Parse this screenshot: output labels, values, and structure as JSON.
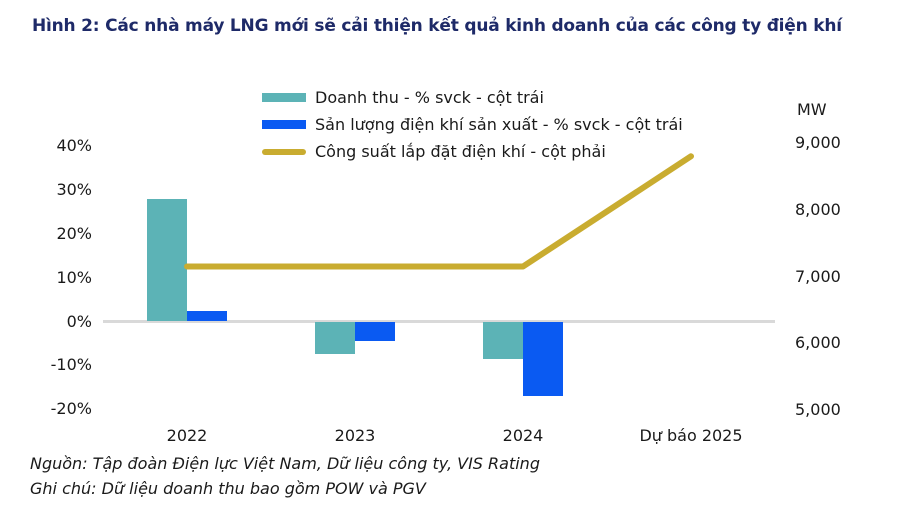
{
  "chart_data": {
    "type": "combo_bar_line",
    "title": "Hình 2: Các nhà máy LNG mới sẽ cải thiện kết quả kinh doanh của các công ty điện khí",
    "categories": [
      "2022",
      "2023",
      "2024",
      "Dự báo 2025"
    ],
    "series": [
      {
        "name": "Doanh thu - % svck - cột trái",
        "type": "bar",
        "axis": "left",
        "color": "#5CB3B6",
        "values": [
          28,
          -7.5,
          -8.5,
          null
        ]
      },
      {
        "name": "Sản lượng điện khí sản xuất - % svck - cột trái",
        "type": "bar",
        "axis": "left",
        "color": "#0A5AF2",
        "values": [
          2.5,
          -4.5,
          -17,
          null
        ]
      },
      {
        "name": "Công suất lắp đặt điện khí - cột phải",
        "type": "line",
        "axis": "right",
        "color": "#C9AC30",
        "values": [
          7150,
          7150,
          7150,
          8800
        ]
      }
    ],
    "left_axis": {
      "unit": "%",
      "range": [
        -20,
        40
      ],
      "ticks": [
        {
          "label": "40%",
          "value": 40
        },
        {
          "label": "30%",
          "value": 30
        },
        {
          "label": "20%",
          "value": 20
        },
        {
          "label": "10%",
          "value": 10
        },
        {
          "label": "0%",
          "value": 0
        },
        {
          "label": "-10%",
          "value": -10
        },
        {
          "label": "-20%",
          "value": -20
        }
      ]
    },
    "right_axis": {
      "label": "MW",
      "range": [
        5000,
        9000
      ],
      "ticks": [
        {
          "label": "9,000",
          "value": 9000
        },
        {
          "label": "8,000",
          "value": 8000
        },
        {
          "label": "7,000",
          "value": 7000
        },
        {
          "label": "6,000",
          "value": 6000
        },
        {
          "label": "5,000",
          "value": 5000
        }
      ]
    },
    "legend_position": "top-center",
    "grid": false
  },
  "footer": {
    "source": "Nguồn: Tập đoàn Điện lực Việt Nam, Dữ liệu công ty, VIS Rating",
    "note": "Ghi chú: Dữ liệu doanh thu bao gồm POW và PGV"
  },
  "colors": {
    "title": "#1E2A68",
    "baseline": "#D9D9D9",
    "text": "#1A1A1A"
  }
}
